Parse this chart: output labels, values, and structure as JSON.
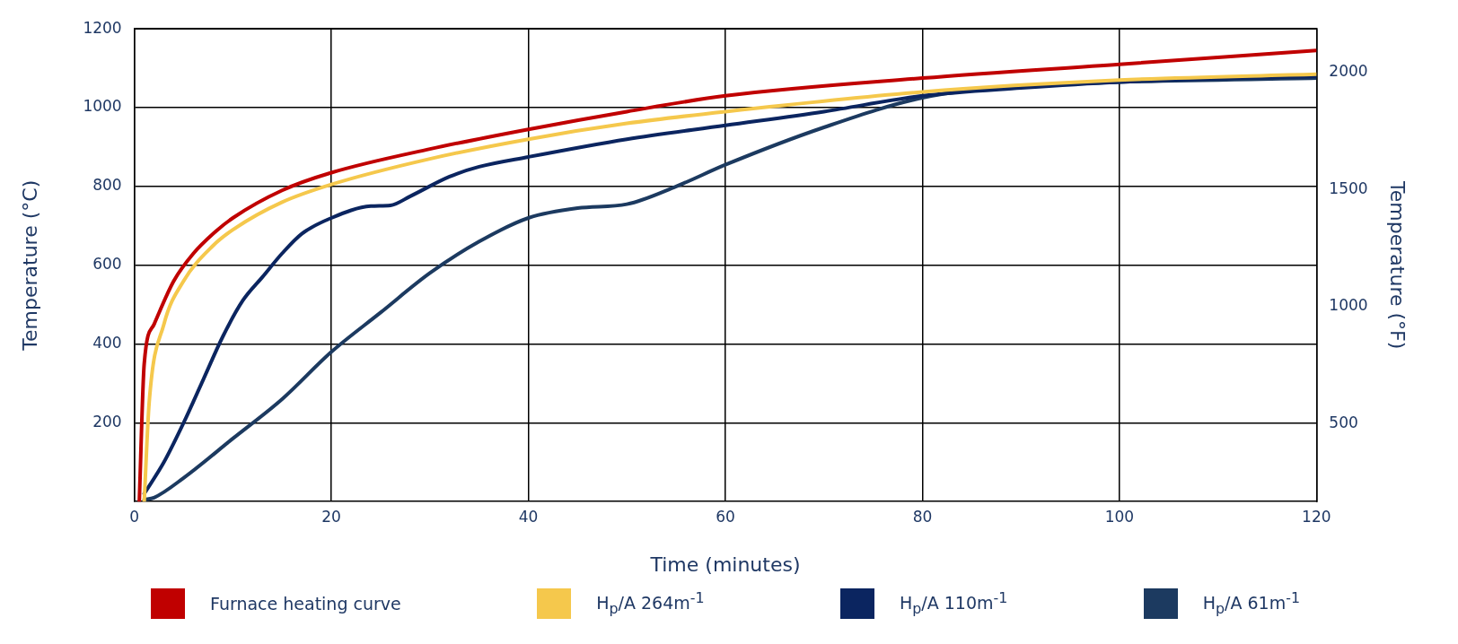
{
  "chart_data": {
    "type": "line",
    "xlabel": "Time (minutes)",
    "ylabel": "Temperature (°C)",
    "y2label": "Temperature (°F)",
    "xlim": [
      0,
      120
    ],
    "xticks": [
      0,
      20,
      40,
      60,
      80,
      100,
      120
    ],
    "ylim": [
      0,
      1200
    ],
    "yticks": [
      200,
      400,
      600,
      800,
      1000,
      1200
    ],
    "y2lim": [
      168,
      2186
    ],
    "y2ticks": [
      500,
      1000,
      1500,
      2000
    ],
    "grid": true,
    "legend": "bottom",
    "marker": "none",
    "line_style": "solid",
    "series": [
      {
        "name": "Furnace heating curve",
        "color": "#c00000",
        "x": [
          0.5,
          1,
          2,
          4,
          6,
          8,
          10,
          15,
          20,
          30,
          40,
          50,
          60,
          80,
          100,
          120
        ],
        "values": [
          0,
          350,
          450,
          560,
          630,
          680,
          720,
          790,
          835,
          895,
          945,
          990,
          1030,
          1075,
          1110,
          1145
        ]
      },
      {
        "name": "H$_{p}$/A 264m$^{-1}$",
        "color": "#f5c84c",
        "x": [
          1,
          1.5,
          3,
          5,
          8,
          10,
          15,
          20,
          30,
          40,
          50,
          60,
          80,
          100,
          120
        ],
        "values": [
          0,
          250,
          450,
          560,
          650,
          690,
          760,
          805,
          870,
          920,
          960,
          990,
          1040,
          1070,
          1085
        ]
      },
      {
        "name": "H$_{p}$/A 110m$^{-1}$",
        "color": "#0b2560",
        "x": [
          1,
          3,
          5,
          7,
          9,
          11,
          13,
          15,
          17,
          20,
          24,
          26,
          28,
          32,
          35,
          40,
          50,
          60,
          70,
          80,
          90,
          100,
          120
        ],
        "values": [
          20,
          100,
          200,
          310,
          420,
          510,
          570,
          630,
          680,
          720,
          750,
          752,
          775,
          825,
          850,
          875,
          920,
          955,
          990,
          1030,
          1050,
          1065,
          1080
        ]
      },
      {
        "name": "H$_{p}$/A 61m$^{-1}$",
        "color": "#1c3a60",
        "x": [
          1,
          2,
          5,
          10,
          15,
          20,
          25,
          30,
          35,
          40,
          45,
          50,
          55,
          60,
          70,
          80,
          90,
          100,
          120
        ],
        "values": [
          5,
          10,
          60,
          160,
          260,
          380,
          480,
          580,
          660,
          720,
          745,
          755,
          800,
          855,
          950,
          1025,
          1055,
          1065,
          1075
        ]
      }
    ]
  }
}
